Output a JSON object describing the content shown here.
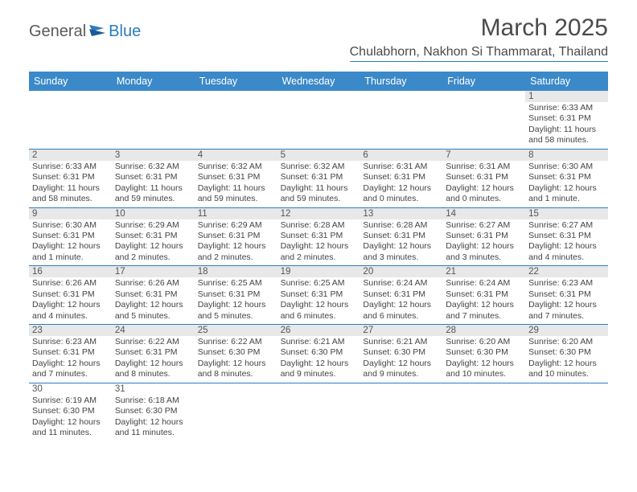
{
  "logo": {
    "text1": "General",
    "text2": "Blue"
  },
  "title": "March 2025",
  "location": "Chulabhorn, Nakhon Si Thammarat, Thailand",
  "colors": {
    "header_bg": "#3b89c9",
    "header_text": "#ffffff",
    "border": "#2b7bbf",
    "daynum_bg": "#e8e8e8",
    "text": "#444444"
  },
  "day_names": [
    "Sunday",
    "Monday",
    "Tuesday",
    "Wednesday",
    "Thursday",
    "Friday",
    "Saturday"
  ],
  "weeks": [
    [
      {
        "n": "",
        "empty": true
      },
      {
        "n": "",
        "empty": true
      },
      {
        "n": "",
        "empty": true
      },
      {
        "n": "",
        "empty": true
      },
      {
        "n": "",
        "empty": true
      },
      {
        "n": "",
        "empty": true
      },
      {
        "n": "1",
        "l": [
          "Sunrise: 6:33 AM",
          "Sunset: 6:31 PM",
          "Daylight: 11 hours",
          "and 58 minutes."
        ]
      }
    ],
    [
      {
        "n": "2",
        "l": [
          "Sunrise: 6:33 AM",
          "Sunset: 6:31 PM",
          "Daylight: 11 hours",
          "and 58 minutes."
        ]
      },
      {
        "n": "3",
        "l": [
          "Sunrise: 6:32 AM",
          "Sunset: 6:31 PM",
          "Daylight: 11 hours",
          "and 59 minutes."
        ]
      },
      {
        "n": "4",
        "l": [
          "Sunrise: 6:32 AM",
          "Sunset: 6:31 PM",
          "Daylight: 11 hours",
          "and 59 minutes."
        ]
      },
      {
        "n": "5",
        "l": [
          "Sunrise: 6:32 AM",
          "Sunset: 6:31 PM",
          "Daylight: 11 hours",
          "and 59 minutes."
        ]
      },
      {
        "n": "6",
        "l": [
          "Sunrise: 6:31 AM",
          "Sunset: 6:31 PM",
          "Daylight: 12 hours",
          "and 0 minutes."
        ]
      },
      {
        "n": "7",
        "l": [
          "Sunrise: 6:31 AM",
          "Sunset: 6:31 PM",
          "Daylight: 12 hours",
          "and 0 minutes."
        ]
      },
      {
        "n": "8",
        "l": [
          "Sunrise: 6:30 AM",
          "Sunset: 6:31 PM",
          "Daylight: 12 hours",
          "and 1 minute."
        ]
      }
    ],
    [
      {
        "n": "9",
        "l": [
          "Sunrise: 6:30 AM",
          "Sunset: 6:31 PM",
          "Daylight: 12 hours",
          "and 1 minute."
        ]
      },
      {
        "n": "10",
        "l": [
          "Sunrise: 6:29 AM",
          "Sunset: 6:31 PM",
          "Daylight: 12 hours",
          "and 2 minutes."
        ]
      },
      {
        "n": "11",
        "l": [
          "Sunrise: 6:29 AM",
          "Sunset: 6:31 PM",
          "Daylight: 12 hours",
          "and 2 minutes."
        ]
      },
      {
        "n": "12",
        "l": [
          "Sunrise: 6:28 AM",
          "Sunset: 6:31 PM",
          "Daylight: 12 hours",
          "and 2 minutes."
        ]
      },
      {
        "n": "13",
        "l": [
          "Sunrise: 6:28 AM",
          "Sunset: 6:31 PM",
          "Daylight: 12 hours",
          "and 3 minutes."
        ]
      },
      {
        "n": "14",
        "l": [
          "Sunrise: 6:27 AM",
          "Sunset: 6:31 PM",
          "Daylight: 12 hours",
          "and 3 minutes."
        ]
      },
      {
        "n": "15",
        "l": [
          "Sunrise: 6:27 AM",
          "Sunset: 6:31 PM",
          "Daylight: 12 hours",
          "and 4 minutes."
        ]
      }
    ],
    [
      {
        "n": "16",
        "l": [
          "Sunrise: 6:26 AM",
          "Sunset: 6:31 PM",
          "Daylight: 12 hours",
          "and 4 minutes."
        ]
      },
      {
        "n": "17",
        "l": [
          "Sunrise: 6:26 AM",
          "Sunset: 6:31 PM",
          "Daylight: 12 hours",
          "and 5 minutes."
        ]
      },
      {
        "n": "18",
        "l": [
          "Sunrise: 6:25 AM",
          "Sunset: 6:31 PM",
          "Daylight: 12 hours",
          "and 5 minutes."
        ]
      },
      {
        "n": "19",
        "l": [
          "Sunrise: 6:25 AM",
          "Sunset: 6:31 PM",
          "Daylight: 12 hours",
          "and 6 minutes."
        ]
      },
      {
        "n": "20",
        "l": [
          "Sunrise: 6:24 AM",
          "Sunset: 6:31 PM",
          "Daylight: 12 hours",
          "and 6 minutes."
        ]
      },
      {
        "n": "21",
        "l": [
          "Sunrise: 6:24 AM",
          "Sunset: 6:31 PM",
          "Daylight: 12 hours",
          "and 7 minutes."
        ]
      },
      {
        "n": "22",
        "l": [
          "Sunrise: 6:23 AM",
          "Sunset: 6:31 PM",
          "Daylight: 12 hours",
          "and 7 minutes."
        ]
      }
    ],
    [
      {
        "n": "23",
        "l": [
          "Sunrise: 6:23 AM",
          "Sunset: 6:31 PM",
          "Daylight: 12 hours",
          "and 7 minutes."
        ]
      },
      {
        "n": "24",
        "l": [
          "Sunrise: 6:22 AM",
          "Sunset: 6:31 PM",
          "Daylight: 12 hours",
          "and 8 minutes."
        ]
      },
      {
        "n": "25",
        "l": [
          "Sunrise: 6:22 AM",
          "Sunset: 6:30 PM",
          "Daylight: 12 hours",
          "and 8 minutes."
        ]
      },
      {
        "n": "26",
        "l": [
          "Sunrise: 6:21 AM",
          "Sunset: 6:30 PM",
          "Daylight: 12 hours",
          "and 9 minutes."
        ]
      },
      {
        "n": "27",
        "l": [
          "Sunrise: 6:21 AM",
          "Sunset: 6:30 PM",
          "Daylight: 12 hours",
          "and 9 minutes."
        ]
      },
      {
        "n": "28",
        "l": [
          "Sunrise: 6:20 AM",
          "Sunset: 6:30 PM",
          "Daylight: 12 hours",
          "and 10 minutes."
        ]
      },
      {
        "n": "29",
        "l": [
          "Sunrise: 6:20 AM",
          "Sunset: 6:30 PM",
          "Daylight: 12 hours",
          "and 10 minutes."
        ]
      }
    ],
    [
      {
        "n": "30",
        "l": [
          "Sunrise: 6:19 AM",
          "Sunset: 6:30 PM",
          "Daylight: 12 hours",
          "and 11 minutes."
        ]
      },
      {
        "n": "31",
        "l": [
          "Sunrise: 6:18 AM",
          "Sunset: 6:30 PM",
          "Daylight: 12 hours",
          "and 11 minutes."
        ]
      },
      {
        "n": "",
        "empty": true
      },
      {
        "n": "",
        "empty": true
      },
      {
        "n": "",
        "empty": true
      },
      {
        "n": "",
        "empty": true
      },
      {
        "n": "",
        "empty": true
      }
    ]
  ]
}
